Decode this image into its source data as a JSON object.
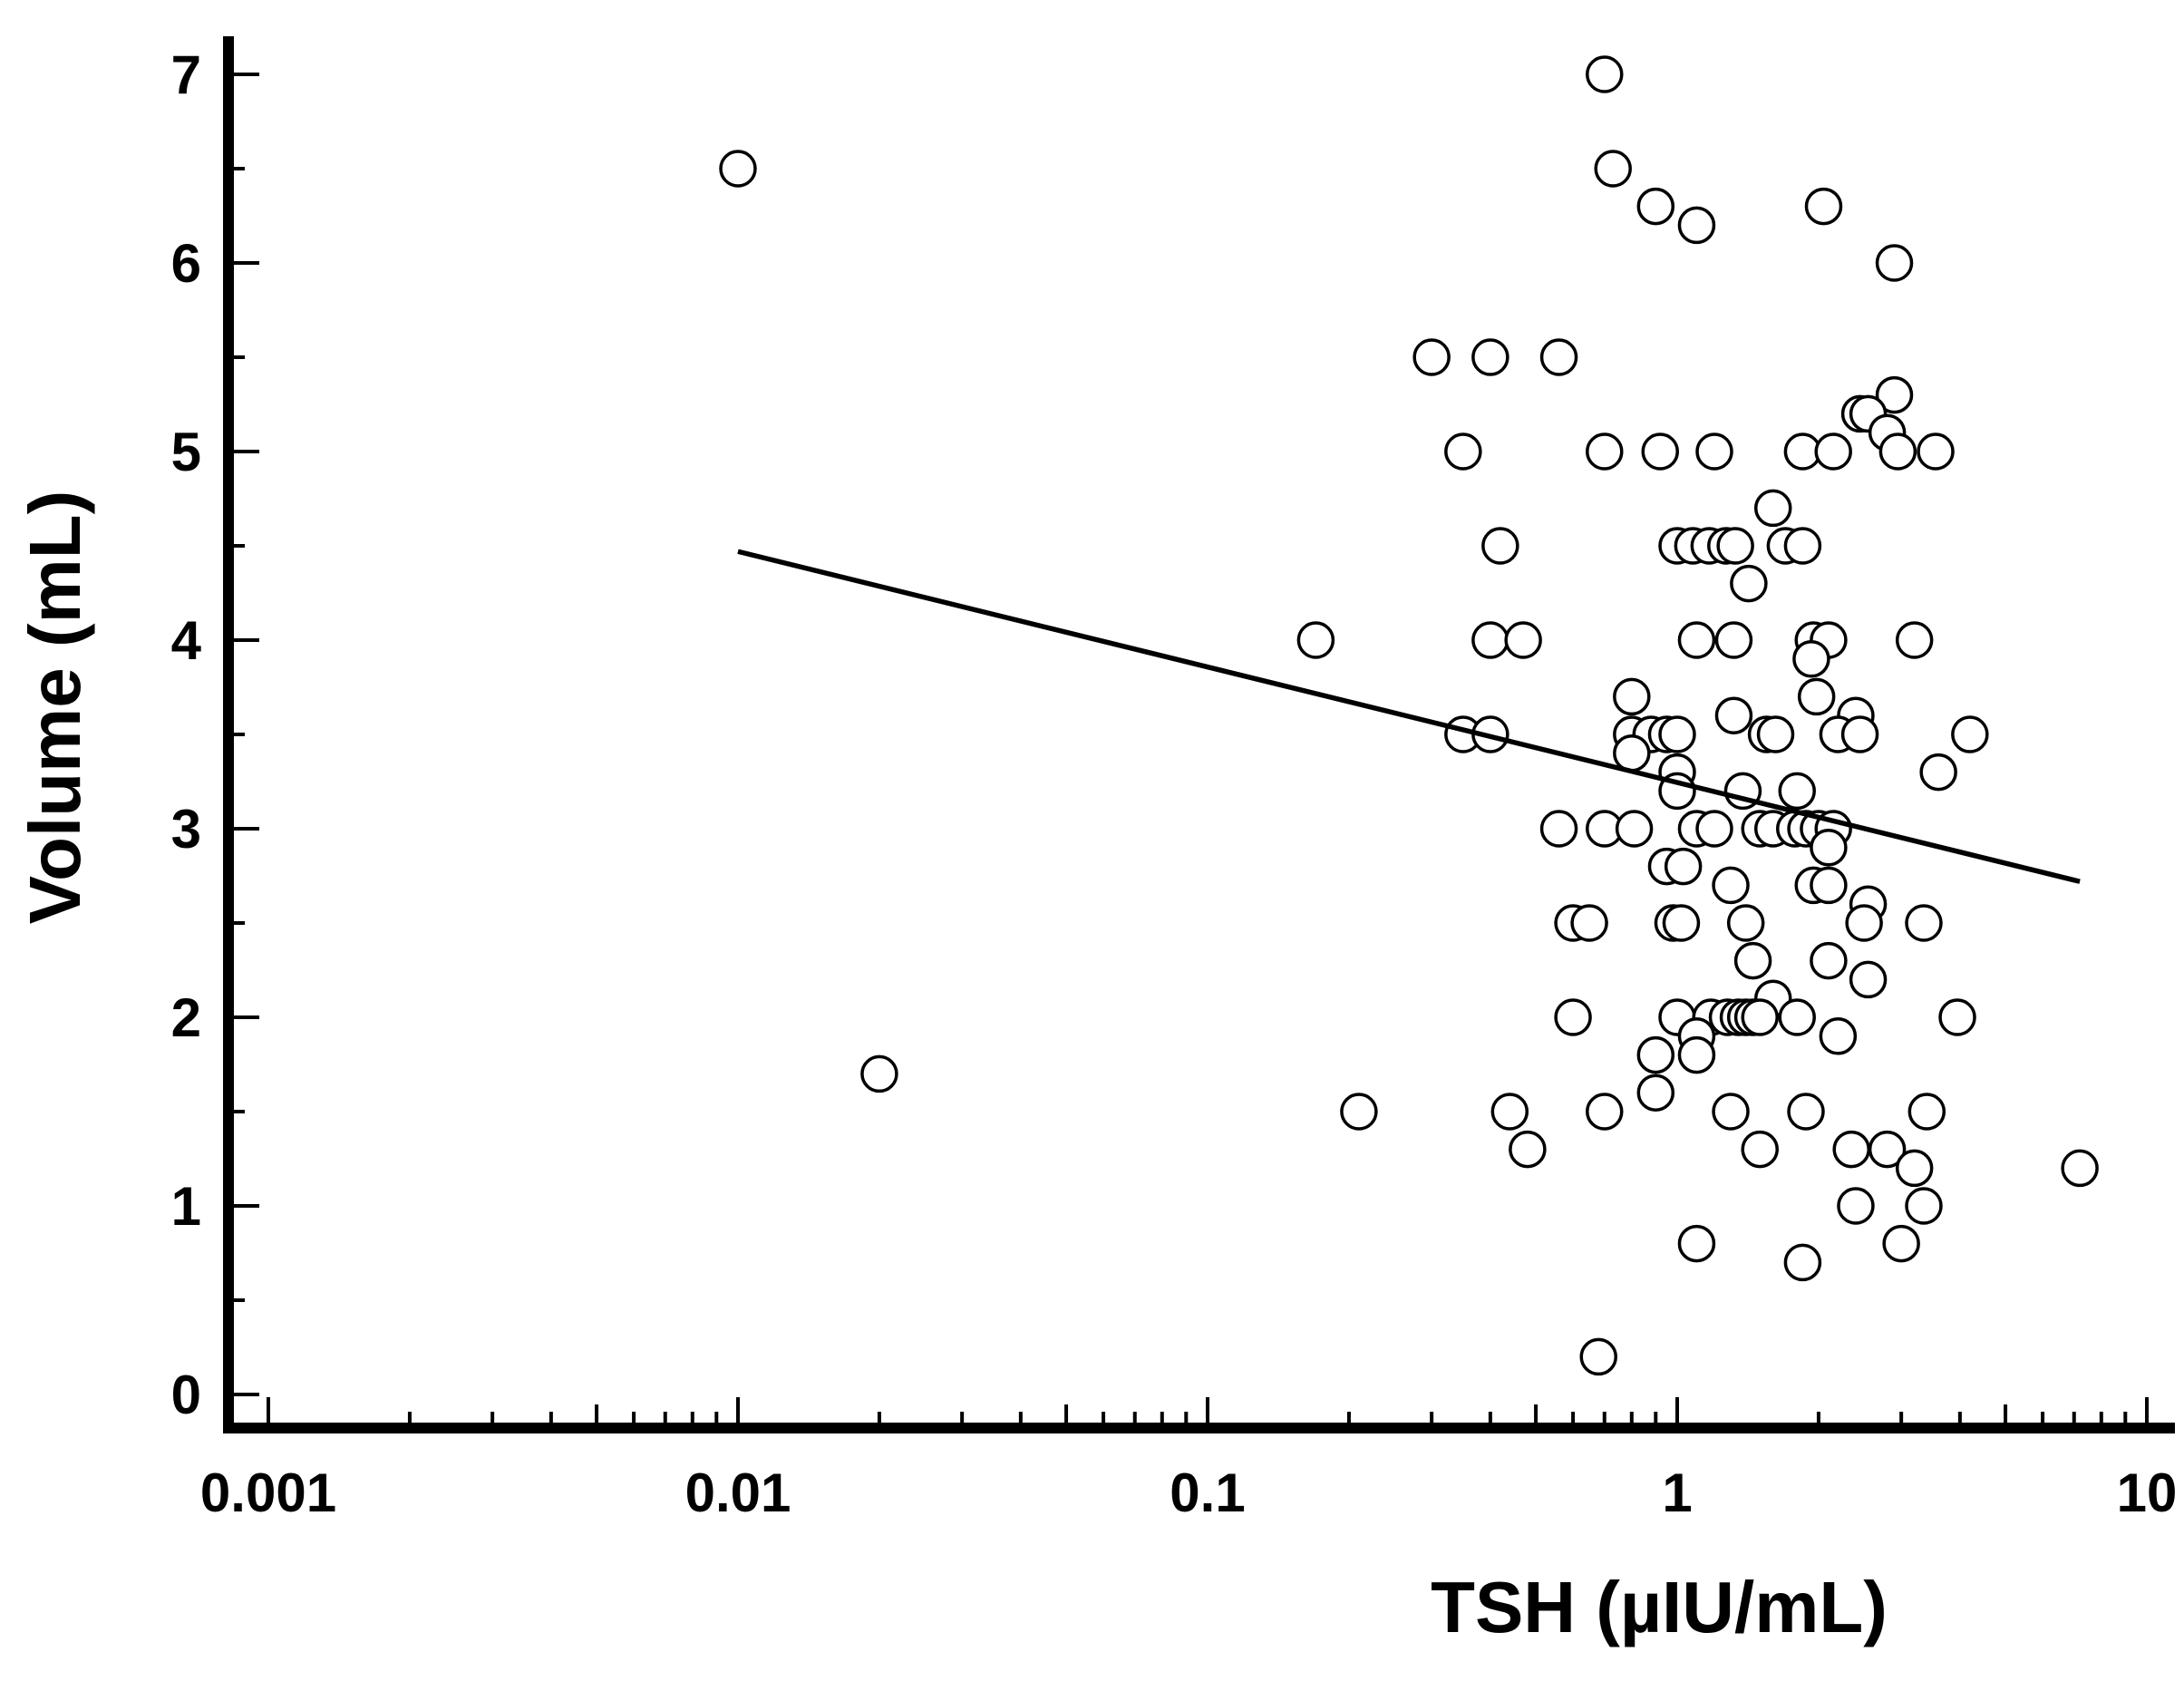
{
  "chart_data": {
    "type": "scatter",
    "title": "",
    "xlabel": "TSH (µIU/mL)",
    "ylabel": "Volume (mL)",
    "xscale": "log",
    "xlim": [
      0.0009,
      12
    ],
    "ylim": [
      -0.2,
      7.2
    ],
    "xticks": [
      {
        "value": 0.001,
        "label": "0.001"
      },
      {
        "value": 0.01,
        "label": "0.01"
      },
      {
        "value": 0.1,
        "label": "0.1"
      },
      {
        "value": 1,
        "label": "1"
      },
      {
        "value": 10,
        "label": "10"
      }
    ],
    "yticks": [
      {
        "value": 0,
        "label": "0"
      },
      {
        "value": 1,
        "label": "1"
      },
      {
        "value": 2,
        "label": "2"
      },
      {
        "value": 3,
        "label": "3"
      },
      {
        "value": 4,
        "label": "4"
      },
      {
        "value": 5,
        "label": "5"
      },
      {
        "value": 6,
        "label": "6"
      },
      {
        "value": 7,
        "label": "7"
      }
    ],
    "yminor": [
      0.5,
      1.5,
      2.5,
      3.5,
      4.5,
      5.5,
      6.5
    ],
    "points": [
      [
        0.7,
        7.0
      ],
      [
        0.01,
        6.5
      ],
      [
        0.73,
        6.5
      ],
      [
        0.9,
        6.3
      ],
      [
        2.05,
        6.3
      ],
      [
        1.1,
        6.2
      ],
      [
        2.9,
        6.0
      ],
      [
        0.3,
        5.5
      ],
      [
        0.4,
        5.5
      ],
      [
        0.56,
        5.5
      ],
      [
        2.9,
        5.3
      ],
      [
        2.45,
        5.2
      ],
      [
        2.55,
        5.2
      ],
      [
        2.8,
        5.1
      ],
      [
        0.35,
        5.0
      ],
      [
        0.7,
        5.0
      ],
      [
        0.92,
        5.0
      ],
      [
        1.2,
        5.0
      ],
      [
        1.85,
        5.0
      ],
      [
        2.15,
        5.0
      ],
      [
        2.95,
        5.0
      ],
      [
        3.55,
        5.0
      ],
      [
        1.6,
        4.7
      ],
      [
        0.42,
        4.5
      ],
      [
        1.0,
        4.5
      ],
      [
        1.08,
        4.5
      ],
      [
        1.17,
        4.5
      ],
      [
        1.27,
        4.5
      ],
      [
        1.33,
        4.5
      ],
      [
        1.7,
        4.5
      ],
      [
        1.85,
        4.5
      ],
      [
        1.42,
        4.3
      ],
      [
        0.17,
        4.0
      ],
      [
        0.4,
        4.0
      ],
      [
        0.47,
        4.0
      ],
      [
        1.1,
        4.0
      ],
      [
        1.32,
        4.0
      ],
      [
        1.95,
        4.0
      ],
      [
        2.1,
        4.0
      ],
      [
        3.2,
        4.0
      ],
      [
        1.93,
        3.9
      ],
      [
        0.8,
        3.7
      ],
      [
        1.98,
        3.7
      ],
      [
        1.32,
        3.6
      ],
      [
        2.4,
        3.6
      ],
      [
        0.35,
        3.5
      ],
      [
        0.4,
        3.5
      ],
      [
        0.8,
        3.5
      ],
      [
        0.88,
        3.5
      ],
      [
        0.95,
        3.5
      ],
      [
        1.0,
        3.5
      ],
      [
        1.55,
        3.5
      ],
      [
        1.62,
        3.5
      ],
      [
        2.2,
        3.5
      ],
      [
        2.45,
        3.5
      ],
      [
        4.2,
        3.5
      ],
      [
        0.8,
        3.4
      ],
      [
        3.6,
        3.3
      ],
      [
        1.0,
        3.3
      ],
      [
        1.0,
        3.2
      ],
      [
        1.38,
        3.2
      ],
      [
        1.8,
        3.2
      ],
      [
        0.56,
        3.0
      ],
      [
        0.7,
        3.0
      ],
      [
        0.81,
        3.0
      ],
      [
        1.1,
        3.0
      ],
      [
        1.2,
        3.0
      ],
      [
        1.5,
        3.0
      ],
      [
        1.6,
        3.0
      ],
      [
        1.78,
        3.0
      ],
      [
        1.88,
        3.0
      ],
      [
        2.0,
        3.0
      ],
      [
        2.15,
        3.0
      ],
      [
        2.1,
        2.9
      ],
      [
        0.95,
        2.8
      ],
      [
        1.03,
        2.8
      ],
      [
        1.3,
        2.7
      ],
      [
        1.95,
        2.7
      ],
      [
        2.1,
        2.7
      ],
      [
        2.55,
        2.6
      ],
      [
        0.6,
        2.5
      ],
      [
        0.65,
        2.5
      ],
      [
        0.98,
        2.5
      ],
      [
        1.02,
        2.5
      ],
      [
        1.4,
        2.5
      ],
      [
        2.5,
        2.5
      ],
      [
        3.35,
        2.5
      ],
      [
        1.45,
        2.3
      ],
      [
        2.1,
        2.3
      ],
      [
        2.55,
        2.2
      ],
      [
        1.6,
        2.1
      ],
      [
        0.6,
        2.0
      ],
      [
        1.0,
        2.0
      ],
      [
        1.18,
        2.0
      ],
      [
        1.28,
        2.0
      ],
      [
        1.35,
        2.0
      ],
      [
        1.4,
        2.0
      ],
      [
        1.45,
        2.0
      ],
      [
        1.5,
        2.0
      ],
      [
        1.8,
        2.0
      ],
      [
        3.95,
        2.0
      ],
      [
        1.1,
        1.9
      ],
      [
        2.2,
        1.9
      ],
      [
        0.9,
        1.8
      ],
      [
        1.1,
        1.8
      ],
      [
        0.02,
        1.7
      ],
      [
        0.9,
        1.6
      ],
      [
        0.21,
        1.5
      ],
      [
        0.44,
        1.5
      ],
      [
        0.7,
        1.5
      ],
      [
        1.3,
        1.5
      ],
      [
        1.88,
        1.5
      ],
      [
        3.4,
        1.5
      ],
      [
        0.48,
        1.3
      ],
      [
        1.5,
        1.3
      ],
      [
        2.35,
        1.3
      ],
      [
        2.8,
        1.3
      ],
      [
        3.2,
        1.2
      ],
      [
        7.2,
        1.2
      ],
      [
        2.4,
        1.0
      ],
      [
        3.35,
        1.0
      ],
      [
        1.1,
        0.8
      ],
      [
        3.0,
        0.8
      ],
      [
        1.85,
        0.7
      ],
      [
        0.68,
        0.2
      ]
    ],
    "fit_line": {
      "x": [
        0.01,
        7.2
      ],
      "y": [
        4.47,
        2.72
      ]
    }
  }
}
